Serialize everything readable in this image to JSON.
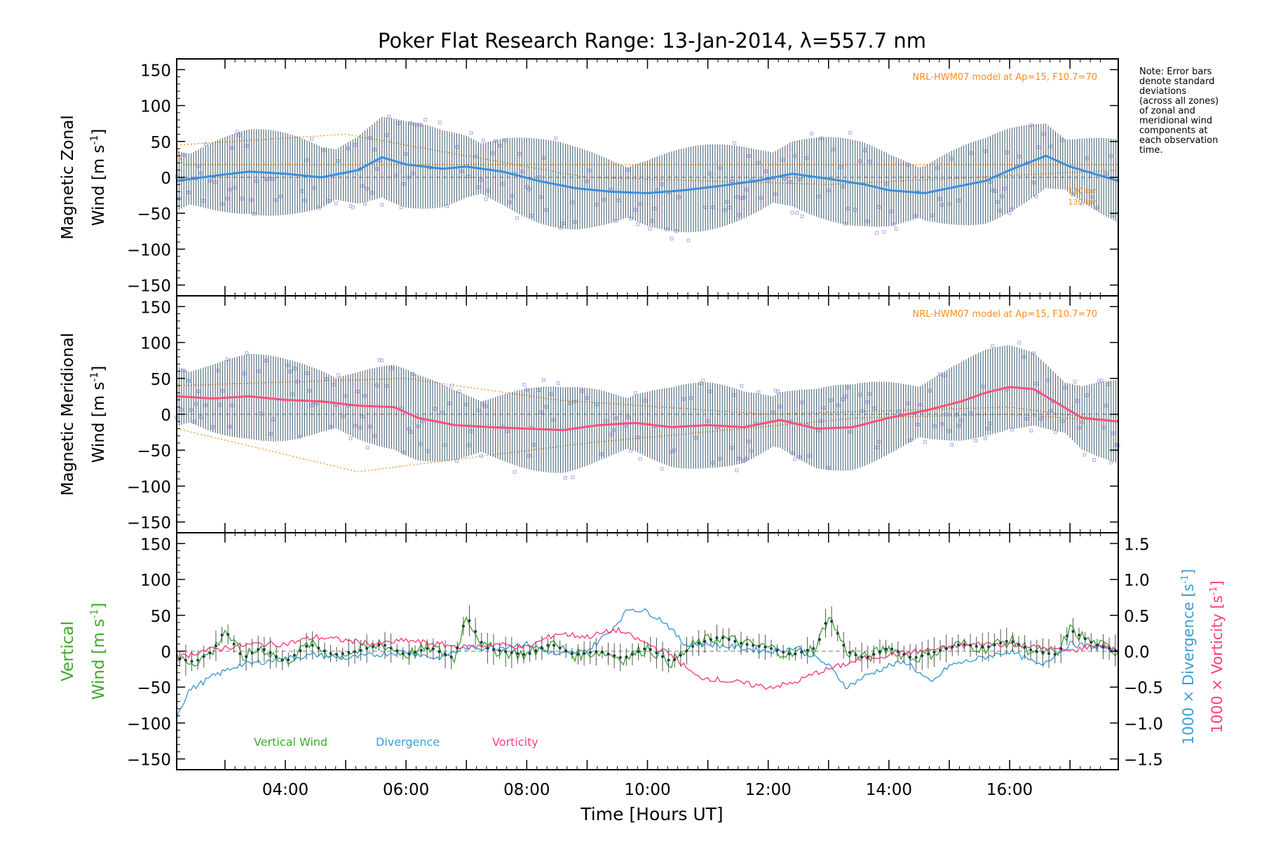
{
  "figure": {
    "title": "Poker Flat Research Range: 13-Jan-2014, λ=557.7 nm",
    "note_lines": [
      "Note: Error bars",
      "denote standard",
      "deviations",
      "(across all zones)",
      "of zonal and",
      "meridional wind",
      "components at",
      "each observation",
      "time."
    ],
    "xlabel": "Time [Hours UT]",
    "xticks": [
      "04:00",
      "06:00",
      "08:00",
      "10:00",
      "12:00",
      "14:00",
      "16:00"
    ],
    "colors": {
      "zonal": "#3a8fe0",
      "meridional": "#ff4f7b",
      "vertical": "#3daa2a",
      "divergence": "#3a9fd6",
      "vorticity": "#ff3d7f",
      "model": "#ff8c1a",
      "scatter": "#b0a8f0",
      "errbar": "#2a4a5e"
    }
  },
  "chart_data": [
    {
      "type": "scatter",
      "panel": "zonal",
      "ylabel_line1": "Magnetic Zonal",
      "ylabel_line2": "Wind [m s",
      "ylabel_sup": "-1",
      "ylabel_close": "]",
      "ylim": [
        -165,
        165
      ],
      "yticks": [
        "150",
        "100",
        "50",
        "0",
        "−50",
        "−100",
        "−150"
      ],
      "model_label": "NRL-HWM07 model at Ap=15, F10.7=70",
      "model_heights": [
        "120 km",
        "130 km"
      ],
      "series": [
        {
          "x": [
            2.2,
            2.8,
            3.4,
            4.0,
            4.6,
            5.2,
            5.6,
            6.0,
            6.6,
            7.0,
            7.6,
            8.2,
            8.8,
            9.4,
            10.0,
            10.6,
            11.2,
            11.8,
            12.4,
            13.0,
            13.6,
            14.0,
            14.6,
            15.0,
            15.6,
            16.0,
            16.6,
            17.0,
            17.4,
            17.8
          ],
          "y": [
            -5,
            2,
            8,
            5,
            0,
            10,
            28,
            18,
            12,
            15,
            8,
            -5,
            -15,
            -20,
            -22,
            -18,
            -12,
            -5,
            5,
            -2,
            -10,
            -18,
            -22,
            -15,
            -5,
            10,
            30,
            15,
            5,
            -5
          ]
        }
      ]
    },
    {
      "type": "scatter",
      "panel": "meridional",
      "ylabel_line1": "Magnetic Meridional",
      "ylabel_line2": "Wind [m s",
      "ylabel_sup": "-1",
      "ylabel_close": "]",
      "ylim": [
        -165,
        165
      ],
      "yticks": [
        "150",
        "100",
        "50",
        "0",
        "−50",
        "−100",
        "−150"
      ],
      "model_label": "NRL-HWM07 model at Ap=15, F10.7=70",
      "series": [
        {
          "x": [
            2.2,
            2.8,
            3.4,
            4.0,
            4.6,
            5.2,
            5.8,
            6.2,
            6.8,
            7.4,
            8.0,
            8.6,
            9.2,
            9.8,
            10.4,
            11.0,
            11.6,
            12.2,
            12.8,
            13.4,
            14.0,
            14.6,
            15.2,
            15.6,
            16.0,
            16.4,
            16.8,
            17.2,
            17.8
          ],
          "y": [
            25,
            22,
            25,
            20,
            18,
            12,
            10,
            -5,
            -15,
            -18,
            -20,
            -22,
            -15,
            -12,
            -18,
            -15,
            -18,
            -8,
            -20,
            -18,
            -5,
            5,
            18,
            30,
            38,
            35,
            15,
            -5,
            -10
          ]
        }
      ]
    },
    {
      "type": "line",
      "panel": "vertical",
      "ylabel_line1": "Vertical",
      "ylabel_line2": "Wind [m s",
      "ylabel_sup": "-1",
      "ylabel_close": "]",
      "ylim": [
        -165,
        165
      ],
      "yticks": [
        "150",
        "100",
        "50",
        "0",
        "−50",
        "−100",
        "−150"
      ],
      "y2lim": [
        -1.65,
        1.65
      ],
      "y2ticks": [
        "1.5",
        "1.0",
        "0.5",
        "0.0",
        "−0.5",
        "−1.0",
        "−1.5"
      ],
      "y2label_div": "1000 × Divergence [s",
      "y2label_vor": "1000 × Vorticity [s",
      "y2label_sup": "-1",
      "legend": [
        "Vertical Wind",
        "Divergence",
        "Vorticity"
      ],
      "series": [
        {
          "name": "Vertical Wind",
          "x": [
            2.2,
            2.5,
            2.8,
            3.0,
            3.3,
            3.6,
            4.0,
            4.4,
            4.8,
            5.2,
            5.6,
            6.0,
            6.4,
            6.8,
            7.0,
            7.3,
            7.6,
            8.0,
            8.4,
            8.8,
            9.2,
            9.6,
            10.0,
            10.4,
            10.8,
            11.2,
            11.6,
            12.0,
            12.4,
            12.8,
            13.0,
            13.3,
            13.6,
            14.0,
            14.4,
            14.8,
            15.2,
            15.6,
            16.0,
            16.4,
            16.8,
            17.0,
            17.4,
            17.8
          ],
          "y": [
            -10,
            -15,
            0,
            30,
            -10,
            5,
            -15,
            10,
            -5,
            0,
            10,
            -5,
            5,
            -10,
            50,
            5,
            0,
            -5,
            10,
            -5,
            0,
            -10,
            5,
            -15,
            10,
            20,
            10,
            5,
            -5,
            5,
            50,
            0,
            -10,
            5,
            -10,
            0,
            10,
            5,
            15,
            0,
            -5,
            30,
            10,
            0
          ]
        },
        {
          "name": "Divergence",
          "x": [
            2.2,
            2.4,
            2.8,
            3.2,
            3.6,
            4.0,
            4.5,
            5.0,
            5.5,
            6.0,
            6.5,
            7.0,
            7.5,
            8.0,
            8.5,
            9.0,
            9.4,
            9.7,
            10.0,
            10.3,
            10.6,
            11.0,
            11.5,
            12.0,
            12.5,
            13.0,
            13.3,
            13.6,
            14.0,
            14.3,
            14.7,
            15.0,
            15.5,
            16.0,
            16.5,
            17.0,
            17.5,
            17.8
          ],
          "y": [
            -0.9,
            -0.55,
            -0.35,
            -0.2,
            -0.15,
            -0.1,
            -0.05,
            -0.1,
            -0.05,
            0.0,
            -0.1,
            0.05,
            0.05,
            0.1,
            -0.05,
            0.0,
            0.3,
            0.6,
            0.55,
            0.4,
            0.1,
            0.1,
            0.05,
            0.0,
            0.05,
            -0.2,
            -0.5,
            -0.35,
            -0.2,
            -0.15,
            -0.45,
            -0.2,
            -0.1,
            0.0,
            -0.2,
            0.1,
            0.05,
            0.0
          ]
        },
        {
          "name": "Vorticity",
          "x": [
            2.2,
            2.6,
            3.0,
            3.5,
            4.0,
            4.5,
            5.0,
            5.5,
            6.0,
            6.5,
            7.0,
            7.5,
            8.0,
            8.5,
            9.0,
            9.5,
            10.0,
            10.4,
            10.8,
            11.2,
            11.6,
            12.0,
            12.4,
            12.8,
            13.2,
            13.6,
            14.0,
            14.5,
            15.0,
            15.5,
            16.0,
            16.5,
            17.0,
            17.5,
            17.8
          ],
          "y": [
            -0.1,
            0.0,
            0.05,
            0.1,
            0.1,
            0.2,
            0.15,
            0.1,
            0.15,
            0.1,
            0.05,
            0.1,
            0.05,
            0.25,
            0.2,
            0.3,
            0.1,
            -0.05,
            -0.35,
            -0.4,
            -0.45,
            -0.5,
            -0.45,
            -0.3,
            -0.2,
            -0.1,
            -0.05,
            0.0,
            0.05,
            0.1,
            0.1,
            0.05,
            0.0,
            0.1,
            0.0
          ]
        }
      ]
    }
  ]
}
